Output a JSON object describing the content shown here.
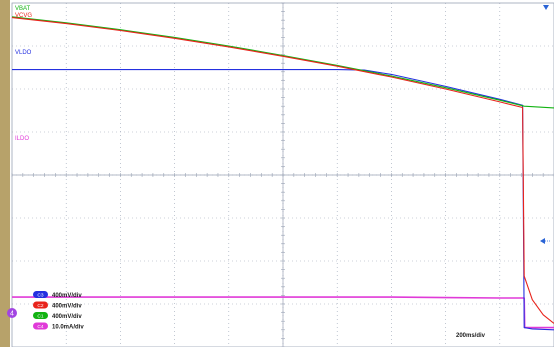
{
  "screen": {
    "background": "#ffffff",
    "grid_color": "#9aa3b5",
    "left_bar_color": "#b7a26a"
  },
  "channels": [
    {
      "id": "1",
      "name": "VBAT",
      "color": "#12b312",
      "scale": "400mV/div"
    },
    {
      "id": "2",
      "name": "VCVG",
      "color": "#e8241c",
      "scale": "400mV/div"
    },
    {
      "id": "3",
      "name": "VLDO",
      "color": "#2430e0",
      "scale": "400mV/div"
    },
    {
      "id": "4",
      "name": "ILDO",
      "color": "#e03ad8",
      "scale": "10.0mA/div"
    }
  ],
  "legend": [
    {
      "badge": "C3",
      "scale": "400mV/div",
      "color": "#2430e0"
    },
    {
      "badge": "C2",
      "scale": "400mV/div",
      "color": "#e8241c"
    },
    {
      "badge": "C1",
      "scale": "400mV/div",
      "color": "#12b312"
    },
    {
      "badge": "C4",
      "scale": "10.0mA/div",
      "color": "#e03ad8"
    }
  ],
  "timebase": "200ms/div",
  "marker_4": "4",
  "chart_data": {
    "type": "line",
    "title": "",
    "xlabel": "",
    "ylabel": "",
    "x_divisions": 10,
    "y_divisions": 8,
    "xlim": [
      0,
      10
    ],
    "ylim": [
      0,
      8
    ],
    "grid": true,
    "series": [
      {
        "name": "VBAT",
        "color": "#12b312",
        "x": [
          0,
          1,
          2,
          3,
          4,
          5,
          6,
          7,
          8,
          9,
          9.45,
          10
        ],
        "y": [
          7.68,
          7.54,
          7.38,
          7.2,
          7.0,
          6.78,
          6.55,
          6.3,
          6.03,
          5.74,
          5.6,
          5.56
        ]
      },
      {
        "name": "VCVG",
        "color": "#e8241c",
        "x": [
          0,
          1,
          2,
          3,
          4,
          5,
          6,
          7,
          8,
          9,
          9.42,
          9.45,
          9.6,
          9.8,
          10
        ],
        "y": [
          7.66,
          7.52,
          7.36,
          7.18,
          6.98,
          6.76,
          6.53,
          6.28,
          6.0,
          5.7,
          5.57,
          1.65,
          1.1,
          0.75,
          0.55
        ]
      },
      {
        "name": "VLDO",
        "color": "#2430e0",
        "x": [
          0,
          1,
          2,
          3,
          4,
          5,
          6,
          6.5,
          7,
          8,
          9,
          9.42,
          9.45,
          9.6,
          10
        ],
        "y": [
          6.45,
          6.45,
          6.45,
          6.45,
          6.45,
          6.45,
          6.45,
          6.44,
          6.34,
          6.06,
          5.76,
          5.62,
          0.45,
          0.42,
          0.4
        ]
      },
      {
        "name": "ILDO",
        "color": "#e03ad8",
        "x": [
          0,
          1,
          2,
          3,
          4,
          5,
          6,
          7,
          8,
          9,
          9.45,
          9.46,
          10
        ],
        "y": [
          1.16,
          1.16,
          1.16,
          1.16,
          1.16,
          1.16,
          1.16,
          1.16,
          1.15,
          1.14,
          1.14,
          0.45,
          0.45
        ]
      }
    ]
  }
}
